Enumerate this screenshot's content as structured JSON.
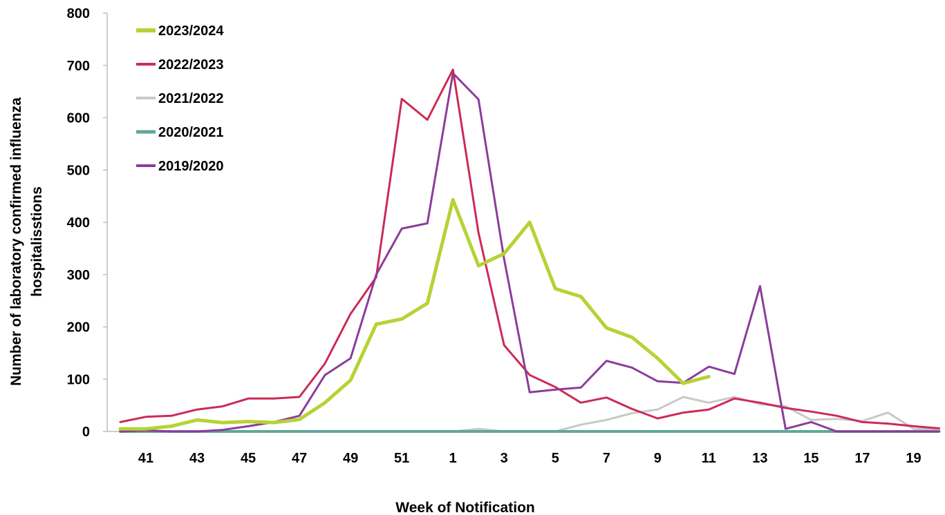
{
  "chart_data": {
    "type": "line",
    "title": "",
    "xlabel": "Week of Notification",
    "ylabel": [
      "Number of laboratory confirmed influenza",
      "hospitalisstions"
    ],
    "ylim": [
      0,
      800
    ],
    "yticks": [
      0,
      100,
      200,
      300,
      400,
      500,
      600,
      700,
      800
    ],
    "grid": false,
    "legend_position": "top-left",
    "x": [
      40,
      41,
      42,
      43,
      44,
      45,
      46,
      47,
      48,
      49,
      50,
      51,
      52,
      1,
      2,
      3,
      4,
      5,
      6,
      7,
      8,
      9,
      10,
      11,
      12,
      13,
      14,
      15,
      16,
      17,
      18,
      19,
      20
    ],
    "xtick_labels": [
      "41",
      "43",
      "45",
      "47",
      "49",
      "51",
      "1",
      "3",
      "5",
      "7",
      "9",
      "11",
      "13",
      "15",
      "17",
      "19"
    ],
    "series": [
      {
        "name": "2023/2024",
        "color": "#b5d334",
        "width": 5,
        "values": [
          5,
          5,
          10,
          22,
          17,
          19,
          17,
          23,
          55,
          98,
          205,
          215,
          245,
          443,
          317,
          340,
          400,
          273,
          258,
          198,
          180,
          140,
          92,
          105,
          null,
          null,
          null,
          null,
          null,
          null,
          null,
          null,
          null
        ]
      },
      {
        "name": "2022/2023",
        "color": "#cc2a55",
        "width": 3,
        "values": [
          18,
          28,
          30,
          42,
          48,
          63,
          63,
          66,
          130,
          225,
          295,
          636,
          596,
          692,
          380,
          165,
          108,
          85,
          55,
          65,
          43,
          25,
          36,
          42,
          63,
          55,
          45,
          38,
          30,
          18,
          15,
          10,
          6
        ]
      },
      {
        "name": "2021/2022",
        "color": "#c8c8c8",
        "width": 3,
        "values": [
          0,
          0,
          0,
          0,
          0,
          0,
          0,
          0,
          0,
          0,
          0,
          0,
          0,
          0,
          5,
          0,
          0,
          0,
          13,
          22,
          35,
          42,
          66,
          55,
          66,
          52,
          48,
          22,
          24,
          20,
          36,
          5,
          4
        ]
      },
      {
        "name": "2020/2021",
        "color": "#5fa79a",
        "width": 4,
        "values": [
          0,
          0,
          0,
          0,
          0,
          0,
          0,
          0,
          0,
          0,
          0,
          0,
          0,
          0,
          0,
          0,
          0,
          0,
          0,
          0,
          0,
          0,
          0,
          0,
          0,
          0,
          0,
          0,
          0,
          0,
          0,
          0,
          0
        ]
      },
      {
        "name": "2019/2020",
        "color": "#8b3c9a",
        "width": 3,
        "values": [
          0,
          2,
          0,
          0,
          3,
          10,
          18,
          30,
          108,
          140,
          300,
          388,
          398,
          685,
          635,
          330,
          75,
          80,
          84,
          135,
          122,
          96,
          93,
          124,
          110,
          278,
          5,
          18,
          0,
          0,
          0,
          0,
          0
        ]
      }
    ]
  }
}
